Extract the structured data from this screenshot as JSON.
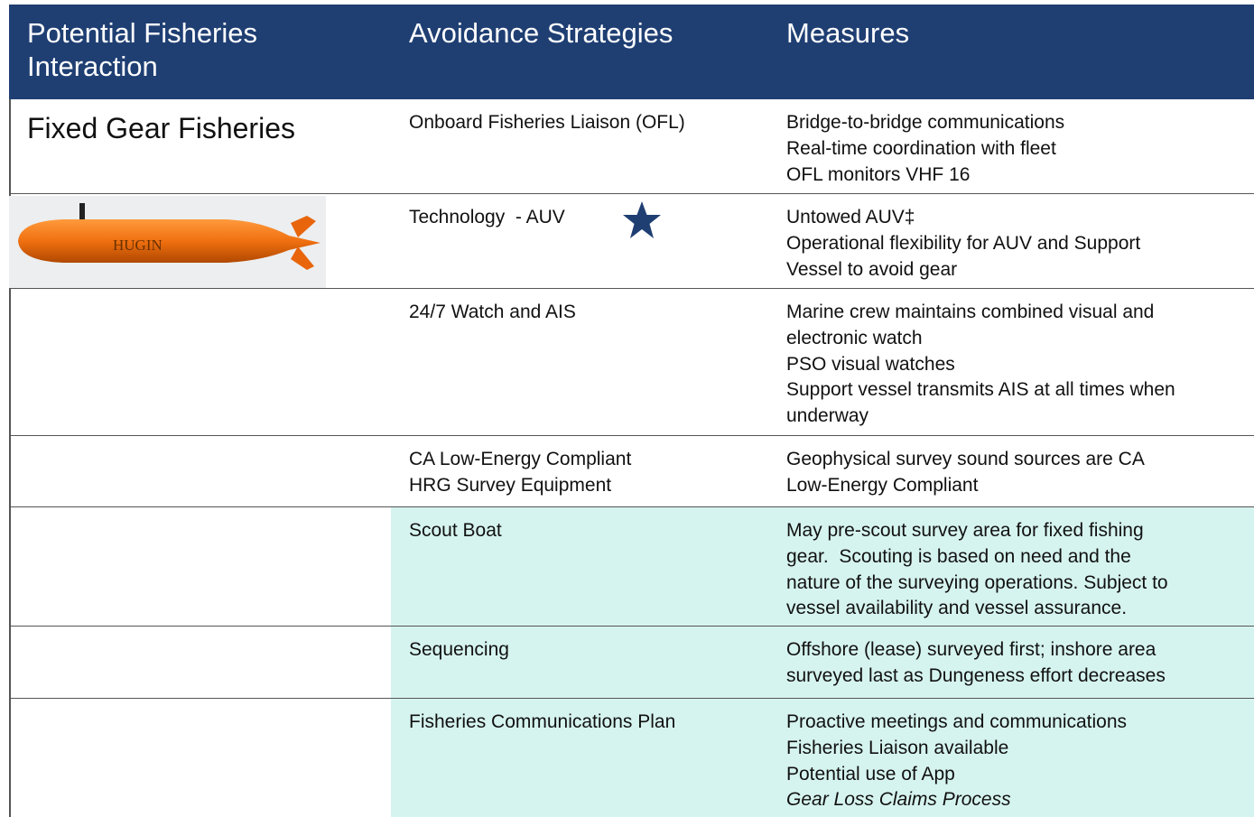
{
  "header": [
    "Potential Fisheries Interaction",
    "Avoidance Strategies",
    "Measures"
  ],
  "rows": [
    {
      "interaction": "Fixed Gear Fisheries",
      "strategy": [
        "Onboard Fisheries Liaison (OFL)"
      ],
      "measures": [
        "Bridge-to-bridge communications",
        "Real-time coordination with fleet",
        "OFL monitors VHF 16"
      ]
    },
    {
      "image_label": "HUGIN",
      "strategy": [
        "Technology  - AUV"
      ],
      "measures": [
        "Untowed AUV‡",
        "Operational flexibility for AUV and Support",
        "Vessel to avoid gear"
      ]
    },
    {
      "strategy": [
        "24/7 Watch and AIS"
      ],
      "measures": [
        "Marine crew maintains combined visual and",
        "electronic watch",
        "PSO visual watches",
        "Support vessel transmits AIS at all times when",
        "underway"
      ]
    },
    {
      "strategy": [
        "CA Low-Energy Compliant",
        "HRG Survey Equipment"
      ],
      "measures": [
        "Geophysical survey sound sources are CA",
        "Low-Energy Compliant"
      ]
    },
    {
      "strategy": [
        "Scout Boat"
      ],
      "measures": [
        "May pre-scout survey area for fixed fishing",
        "gear.  Scouting is based on need and the",
        "nature of the surveying operations. Subject to",
        "vessel availability and vessel assurance."
      ]
    },
    {
      "strategy": [
        "Sequencing"
      ],
      "measures": [
        "Offshore (lease) surveyed first; inshore area",
        "surveyed last as Dungeness effort decreases"
      ]
    },
    {
      "strategy": [
        "Fisheries Communications Plan"
      ],
      "measures": [
        "Proactive meetings and communications",
        "Fisheries Liaison available",
        "Potential use of App",
        "Gear Loss Claims Process"
      ]
    }
  ]
}
